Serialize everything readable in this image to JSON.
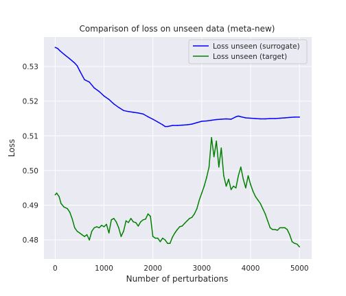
{
  "chart_data": {
    "type": "line",
    "title": "Comparison of loss on unseen data (meta-new)",
    "xlabel": "Number of perturbations",
    "ylabel": "Loss",
    "xlim": [
      -230,
      5250
    ],
    "ylim": [
      0.4745,
      0.5385
    ],
    "x_ticks": [
      0,
      1000,
      2000,
      3000,
      4000,
      5000
    ],
    "x_tick_labels": [
      "0",
      "1000",
      "2000",
      "3000",
      "4000",
      "5000"
    ],
    "y_ticks": [
      0.48,
      0.49,
      0.5,
      0.51,
      0.52,
      0.53
    ],
    "y_tick_labels": [
      "0.48",
      "0.49",
      "0.50",
      "0.51",
      "0.52",
      "0.53"
    ],
    "grid": true,
    "legend_position": "top-right",
    "series": [
      {
        "name": "Loss unseen (surrogate)",
        "color": "#0000ff",
        "x": [
          0,
          50,
          100,
          200,
          300,
          400,
          450,
          500,
          600,
          700,
          800,
          900,
          1000,
          1100,
          1200,
          1300,
          1400,
          1500,
          1600,
          1700,
          1800,
          1900,
          2000,
          2100,
          2200,
          2250,
          2300,
          2400,
          2500,
          2600,
          2700,
          2800,
          2900,
          3000,
          3100,
          3200,
          3300,
          3400,
          3500,
          3600,
          3700,
          3750,
          3800,
          3900,
          4000,
          4100,
          4200,
          4300,
          4400,
          4500,
          4600,
          4700,
          4800,
          4900,
          5000
        ],
        "values": [
          0.5355,
          0.5352,
          0.5345,
          0.5333,
          0.5322,
          0.531,
          0.5302,
          0.5288,
          0.5262,
          0.5255,
          0.5238,
          0.5228,
          0.5215,
          0.5205,
          0.5192,
          0.5182,
          0.5173,
          0.517,
          0.5168,
          0.5166,
          0.5163,
          0.5155,
          0.5148,
          0.514,
          0.5132,
          0.5127,
          0.5127,
          0.513,
          0.513,
          0.5131,
          0.5132,
          0.5134,
          0.5138,
          0.5142,
          0.5143,
          0.5145,
          0.5147,
          0.5148,
          0.5149,
          0.5148,
          0.5155,
          0.5157,
          0.5155,
          0.5152,
          0.5151,
          0.515,
          0.5149,
          0.5149,
          0.515,
          0.515,
          0.5151,
          0.5152,
          0.5153,
          0.5154,
          0.5154
        ]
      },
      {
        "name": "Loss unseen (target)",
        "color": "#008000",
        "x": [
          0,
          30,
          80,
          120,
          180,
          250,
          300,
          350,
          400,
          450,
          500,
          550,
          600,
          650,
          700,
          750,
          800,
          850,
          900,
          950,
          1000,
          1050,
          1100,
          1150,
          1200,
          1250,
          1300,
          1350,
          1400,
          1450,
          1500,
          1550,
          1600,
          1650,
          1700,
          1750,
          1800,
          1850,
          1900,
          1950,
          2000,
          2050,
          2100,
          2150,
          2200,
          2250,
          2300,
          2350,
          2400,
          2450,
          2500,
          2550,
          2600,
          2650,
          2700,
          2750,
          2800,
          2850,
          2900,
          2950,
          3000,
          3050,
          3100,
          3150,
          3200,
          3250,
          3300,
          3350,
          3400,
          3450,
          3500,
          3550,
          3600,
          3650,
          3700,
          3750,
          3800,
          3850,
          3900,
          3950,
          4000,
          4050,
          4100,
          4150,
          4200,
          4250,
          4300,
          4350,
          4400,
          4450,
          4500,
          4550,
          4600,
          4650,
          4700,
          4750,
          4800,
          4850,
          4900,
          4950,
          5000
        ],
        "values": [
          0.493,
          0.4935,
          0.4925,
          0.4905,
          0.4895,
          0.489,
          0.488,
          0.486,
          0.4835,
          0.4825,
          0.482,
          0.4815,
          0.481,
          0.4815,
          0.48,
          0.4825,
          0.4835,
          0.4838,
          0.4835,
          0.4842,
          0.4838,
          0.4845,
          0.482,
          0.4858,
          0.4862,
          0.4852,
          0.4835,
          0.481,
          0.4825,
          0.4855,
          0.485,
          0.4862,
          0.4852,
          0.485,
          0.484,
          0.4852,
          0.4858,
          0.486,
          0.4875,
          0.4868,
          0.481,
          0.4805,
          0.4805,
          0.4795,
          0.4805,
          0.48,
          0.479,
          0.479,
          0.4808,
          0.482,
          0.483,
          0.4838,
          0.484,
          0.4848,
          0.4855,
          0.4862,
          0.4865,
          0.4875,
          0.489,
          0.4915,
          0.4935,
          0.4955,
          0.498,
          0.501,
          0.5095,
          0.504,
          0.5085,
          0.501,
          0.5065,
          0.4985,
          0.4955,
          0.4975,
          0.4945,
          0.4955,
          0.495,
          0.4985,
          0.501,
          0.4975,
          0.495,
          0.4985,
          0.496,
          0.494,
          0.4925,
          0.4915,
          0.4905,
          0.489,
          0.4875,
          0.4855,
          0.4835,
          0.483,
          0.483,
          0.4828,
          0.4835,
          0.4835,
          0.4835,
          0.483,
          0.4815,
          0.4795,
          0.479,
          0.4788,
          0.478
        ]
      }
    ]
  }
}
